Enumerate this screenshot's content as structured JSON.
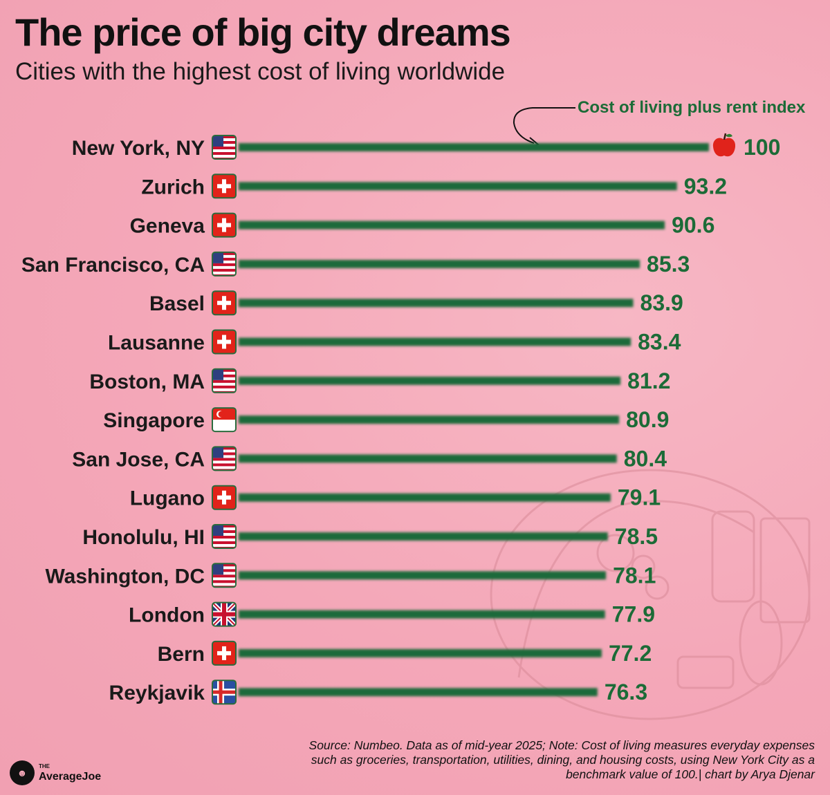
{
  "title": "The price of big city dreams",
  "subtitle": "Cities with the highest cost of living worldwide",
  "colors": {
    "bar": "#1f6b3a",
    "value_text": "#1c6b37",
    "accent_apple": "#e0231b",
    "background": "#f4a7b8"
  },
  "chart_data": {
    "type": "bar",
    "orientation": "horizontal",
    "legend_label": "Cost of living plus rent index",
    "categories": [
      "New York, NY",
      "Zurich",
      "Geneva",
      "San Francisco, CA",
      "Basel",
      "Lausanne",
      "Boston, MA",
      "Singapore",
      "San Jose, CA",
      "Lugano",
      "Honolulu, HI",
      "Washington, DC",
      "London",
      "Bern",
      "Reykjavik"
    ],
    "flags": [
      "us",
      "ch",
      "ch",
      "us",
      "ch",
      "ch",
      "us",
      "sg",
      "us",
      "ch",
      "us",
      "us",
      "gb",
      "ch",
      "is"
    ],
    "values": [
      100,
      93.2,
      90.6,
      85.3,
      83.9,
      83.4,
      81.2,
      80.9,
      80.4,
      79.1,
      78.5,
      78.1,
      77.9,
      77.2,
      76.3
    ],
    "value_labels": [
      "100",
      "93.2",
      "90.6",
      "85.3",
      "83.9",
      "83.4",
      "81.2",
      "80.9",
      "80.4",
      "79.1",
      "78.5",
      "78.1",
      "77.9",
      "77.2",
      "76.3"
    ],
    "highlight_icon": "apple-icon",
    "xlim": [
      0,
      100
    ]
  },
  "footer": {
    "source_text": "Source: Numbeo. Data as of mid-year 2025; Note: Cost of living measures everyday expenses such as groceries, transportation, utilities, dining, and housing costs, using New York City as a benchmark value of 100.| chart by Arya Djenar",
    "logo_small": "THE",
    "logo_name": "AverageJoe"
  }
}
